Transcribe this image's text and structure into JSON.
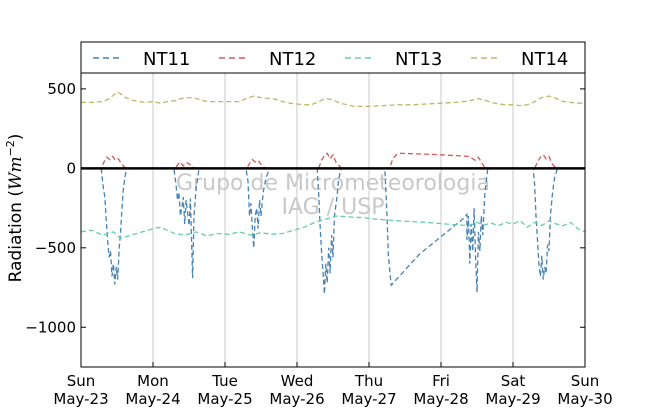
{
  "chart_data": {
    "type": "line",
    "ylabel": "Radiation (Wm⁻²)",
    "ylabel_main": "Radiation (",
    "ylabel_unit": "Wm",
    "ylabel_sup": "−2",
    "ylabel_close": ")",
    "ylim": [
      -1250,
      600
    ],
    "xlim": [
      0,
      7
    ],
    "yticks": [
      500,
      0,
      -500,
      -1000
    ],
    "ytick_labels": [
      "500",
      "0",
      "−500",
      "−1000"
    ],
    "x_day_labels": [
      "Sun",
      "Mon",
      "Tue",
      "Wed",
      "Thu",
      "Fri",
      "Sat",
      "Sun"
    ],
    "x_date_labels": [
      "May-23",
      "May-24",
      "May-25",
      "May-26",
      "May-27",
      "May-28",
      "May-29",
      "May-30"
    ],
    "grid": "vertical",
    "legend_position": "top",
    "watermark_line1": "Grupo de Micrometeorologia",
    "watermark_line2": "IAG / USP",
    "series": [
      {
        "name": "NT11",
        "color": "#4682b4",
        "points": [
          [
            0.28,
            0
          ],
          [
            0.31,
            -120
          ],
          [
            0.33,
            -180
          ],
          [
            0.35,
            -320
          ],
          [
            0.37,
            -450
          ],
          [
            0.39,
            -560
          ],
          [
            0.41,
            -520
          ],
          [
            0.43,
            -680
          ],
          [
            0.45,
            -600
          ],
          [
            0.47,
            -730
          ],
          [
            0.49,
            -620
          ],
          [
            0.51,
            -700
          ],
          [
            0.53,
            -500
          ],
          [
            0.55,
            -400
          ],
          [
            0.57,
            -250
          ],
          [
            0.59,
            -120
          ],
          [
            0.62,
            -30
          ],
          [
            0.66,
            0
          ],
          [
            1.29,
            0
          ],
          [
            1.32,
            -100
          ],
          [
            1.34,
            -200
          ],
          [
            1.36,
            -150
          ],
          [
            1.38,
            -300
          ],
          [
            1.4,
            -250
          ],
          [
            1.42,
            -180
          ],
          [
            1.44,
            -350
          ],
          [
            1.46,
            -200
          ],
          [
            1.48,
            -280
          ],
          [
            1.5,
            -360
          ],
          [
            1.52,
            -190
          ],
          [
            1.55,
            -690
          ],
          [
            1.57,
            -300
          ],
          [
            1.6,
            -120
          ],
          [
            1.64,
            0
          ],
          [
            2.29,
            0
          ],
          [
            2.32,
            -80
          ],
          [
            2.34,
            -300
          ],
          [
            2.36,
            -220
          ],
          [
            2.38,
            -380
          ],
          [
            2.4,
            -500
          ],
          [
            2.42,
            -300
          ],
          [
            2.44,
            -250
          ],
          [
            2.46,
            -380
          ],
          [
            2.48,
            -200
          ],
          [
            2.5,
            -300
          ],
          [
            2.53,
            -150
          ],
          [
            2.57,
            -60
          ],
          [
            2.62,
            0
          ],
          [
            3.28,
            0
          ],
          [
            3.3,
            -150
          ],
          [
            3.32,
            -350
          ],
          [
            3.34,
            -520
          ],
          [
            3.36,
            -640
          ],
          [
            3.38,
            -790
          ],
          [
            3.4,
            -600
          ],
          [
            3.42,
            -720
          ],
          [
            3.44,
            -500
          ],
          [
            3.46,
            -660
          ],
          [
            3.48,
            -420
          ],
          [
            3.5,
            -560
          ],
          [
            3.52,
            -300
          ],
          [
            3.55,
            -200
          ],
          [
            3.58,
            -60
          ],
          [
            3.62,
            0
          ],
          [
            4.22,
            0
          ],
          [
            4.25,
            -300
          ],
          [
            4.27,
            -550
          ],
          [
            4.3,
            -700
          ],
          [
            4.31,
            -735
          ],
          [
            4.7,
            -540
          ],
          [
            5.0,
            -430
          ],
          [
            5.3,
            -320
          ],
          [
            5.36,
            -290
          ],
          [
            5.36,
            -450
          ],
          [
            5.38,
            -300
          ],
          [
            5.4,
            -600
          ],
          [
            5.42,
            -350
          ],
          [
            5.44,
            -520
          ],
          [
            5.46,
            -250
          ],
          [
            5.48,
            -560
          ],
          [
            5.5,
            -780
          ],
          [
            5.52,
            -400
          ],
          [
            5.54,
            -520
          ],
          [
            5.56,
            -300
          ],
          [
            5.58,
            -420
          ],
          [
            5.61,
            -150
          ],
          [
            5.65,
            0
          ],
          [
            6.28,
            0
          ],
          [
            6.3,
            -100
          ],
          [
            6.32,
            -300
          ],
          [
            6.34,
            -450
          ],
          [
            6.36,
            -600
          ],
          [
            6.38,
            -680
          ],
          [
            6.4,
            -550
          ],
          [
            6.42,
            -700
          ],
          [
            6.44,
            -620
          ],
          [
            6.46,
            -660
          ],
          [
            6.48,
            -480
          ],
          [
            6.5,
            -520
          ],
          [
            6.52,
            -300
          ],
          [
            6.55,
            -150
          ],
          [
            6.58,
            -50
          ],
          [
            6.62,
            0
          ]
        ]
      },
      {
        "name": "NT12",
        "color": "#cd5c5c",
        "points": [
          [
            0.0,
            0
          ],
          [
            0.28,
            0
          ],
          [
            0.32,
            40
          ],
          [
            0.36,
            70
          ],
          [
            0.4,
            55
          ],
          [
            0.44,
            75
          ],
          [
            0.48,
            50
          ],
          [
            0.52,
            60
          ],
          [
            0.56,
            30
          ],
          [
            0.6,
            10
          ],
          [
            0.64,
            0
          ],
          [
            1.3,
            0
          ],
          [
            1.34,
            20
          ],
          [
            1.38,
            40
          ],
          [
            1.42,
            15
          ],
          [
            1.46,
            35
          ],
          [
            1.5,
            30
          ],
          [
            1.54,
            10
          ],
          [
            1.6,
            0
          ],
          [
            2.3,
            0
          ],
          [
            2.34,
            30
          ],
          [
            2.38,
            55
          ],
          [
            2.42,
            40
          ],
          [
            2.46,
            50
          ],
          [
            2.5,
            25
          ],
          [
            2.56,
            0
          ],
          [
            3.3,
            0
          ],
          [
            3.34,
            50
          ],
          [
            3.38,
            80
          ],
          [
            3.42,
            95
          ],
          [
            3.46,
            60
          ],
          [
            3.5,
            85
          ],
          [
            3.54,
            40
          ],
          [
            3.58,
            20
          ],
          [
            3.62,
            0
          ],
          [
            4.28,
            0
          ],
          [
            4.3,
            20
          ],
          [
            4.33,
            60
          ],
          [
            4.38,
            85
          ],
          [
            4.42,
            95
          ],
          [
            4.6,
            92
          ],
          [
            5.0,
            85
          ],
          [
            5.3,
            78
          ],
          [
            5.4,
            75
          ],
          [
            5.44,
            60
          ],
          [
            5.48,
            50
          ],
          [
            5.52,
            70
          ],
          [
            5.56,
            40
          ],
          [
            5.6,
            10
          ],
          [
            5.64,
            0
          ],
          [
            6.3,
            0
          ],
          [
            6.34,
            40
          ],
          [
            6.38,
            70
          ],
          [
            6.42,
            85
          ],
          [
            6.46,
            60
          ],
          [
            6.5,
            75
          ],
          [
            6.54,
            30
          ],
          [
            6.6,
            0
          ],
          [
            7.0,
            0
          ]
        ]
      },
      {
        "name": "NT13",
        "color": "#66cdaa",
        "points": [
          [
            0.0,
            -400
          ],
          [
            0.15,
            -390
          ],
          [
            0.3,
            -420
          ],
          [
            0.45,
            -400
          ],
          [
            0.55,
            -440
          ],
          [
            0.7,
            -420
          ],
          [
            0.85,
            -400
          ],
          [
            1.0,
            -380
          ],
          [
            1.1,
            -370
          ],
          [
            1.2,
            -390
          ],
          [
            1.3,
            -410
          ],
          [
            1.45,
            -420
          ],
          [
            1.6,
            -400
          ],
          [
            1.75,
            -425
          ],
          [
            1.9,
            -410
          ],
          [
            2.05,
            -415
          ],
          [
            2.2,
            -400
          ],
          [
            2.35,
            -420
          ],
          [
            2.5,
            -405
          ],
          [
            2.65,
            -415
          ],
          [
            2.8,
            -410
          ],
          [
            2.95,
            -390
          ],
          [
            3.1,
            -370
          ],
          [
            3.25,
            -340
          ],
          [
            3.4,
            -320
          ],
          [
            3.55,
            -300
          ],
          [
            3.7,
            -305
          ],
          [
            3.9,
            -310
          ],
          [
            4.1,
            -320
          ],
          [
            4.4,
            -330
          ],
          [
            4.8,
            -340
          ],
          [
            5.2,
            -355
          ],
          [
            5.4,
            -360
          ],
          [
            5.5,
            -340
          ],
          [
            5.6,
            -355
          ],
          [
            5.7,
            -345
          ],
          [
            5.8,
            -360
          ],
          [
            5.9,
            -340
          ],
          [
            6.0,
            -350
          ],
          [
            6.1,
            -330
          ],
          [
            6.2,
            -370
          ],
          [
            6.3,
            -340
          ],
          [
            6.4,
            -360
          ],
          [
            6.5,
            -330
          ],
          [
            6.6,
            -350
          ],
          [
            6.7,
            -360
          ],
          [
            6.8,
            -340
          ],
          [
            6.9,
            -380
          ],
          [
            7.0,
            -400
          ]
        ]
      },
      {
        "name": "NT14",
        "color": "#bdb76b",
        "points": [
          [
            0.0,
            415
          ],
          [
            0.15,
            415
          ],
          [
            0.3,
            420
          ],
          [
            0.4,
            440
          ],
          [
            0.45,
            460
          ],
          [
            0.5,
            480
          ],
          [
            0.55,
            470
          ],
          [
            0.6,
            450
          ],
          [
            0.7,
            430
          ],
          [
            0.8,
            420
          ],
          [
            0.9,
            415
          ],
          [
            1.0,
            420
          ],
          [
            1.1,
            410
          ],
          [
            1.2,
            420
          ],
          [
            1.3,
            425
          ],
          [
            1.4,
            440
          ],
          [
            1.5,
            445
          ],
          [
            1.6,
            440
          ],
          [
            1.7,
            425
          ],
          [
            1.8,
            420
          ],
          [
            1.9,
            420
          ],
          [
            2.0,
            420
          ],
          [
            2.1,
            420
          ],
          [
            2.2,
            420
          ],
          [
            2.3,
            440
          ],
          [
            2.4,
            455
          ],
          [
            2.5,
            445
          ],
          [
            2.6,
            440
          ],
          [
            2.7,
            435
          ],
          [
            2.8,
            420
          ],
          [
            2.9,
            410
          ],
          [
            3.0,
            405
          ],
          [
            3.1,
            400
          ],
          [
            3.2,
            400
          ],
          [
            3.3,
            420
          ],
          [
            3.4,
            440
          ],
          [
            3.5,
            430
          ],
          [
            3.6,
            410
          ],
          [
            3.7,
            400
          ],
          [
            3.8,
            390
          ],
          [
            3.9,
            390
          ],
          [
            4.0,
            390
          ],
          [
            4.2,
            395
          ],
          [
            4.4,
            400
          ],
          [
            4.6,
            400
          ],
          [
            4.8,
            405
          ],
          [
            5.0,
            410
          ],
          [
            5.2,
            415
          ],
          [
            5.4,
            425
          ],
          [
            5.5,
            440
          ],
          [
            5.6,
            430
          ],
          [
            5.7,
            415
          ],
          [
            5.8,
            405
          ],
          [
            5.9,
            400
          ],
          [
            6.0,
            400
          ],
          [
            6.1,
            395
          ],
          [
            6.2,
            400
          ],
          [
            6.3,
            420
          ],
          [
            6.4,
            445
          ],
          [
            6.5,
            455
          ],
          [
            6.6,
            440
          ],
          [
            6.7,
            420
          ],
          [
            6.8,
            415
          ],
          [
            6.9,
            410
          ],
          [
            7.0,
            410
          ]
        ]
      }
    ]
  }
}
